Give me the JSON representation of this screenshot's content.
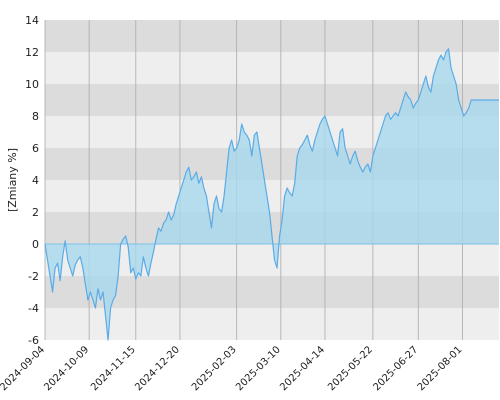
{
  "chart_data": {
    "type": "area",
    "title": "",
    "xlabel": "",
    "ylabel": "[Zmiany %]",
    "ylim": [
      -6,
      14
    ],
    "yticks": [
      -6,
      -4,
      -2,
      0,
      2,
      4,
      6,
      8,
      10,
      12,
      14
    ],
    "xlim": [
      "2024-09-04",
      "2025-08-30"
    ],
    "xticks": [
      "2024-09-04",
      "2024-10-09",
      "2024-11-15",
      "2024-12-20",
      "2025-02-03",
      "2025-03-10",
      "2025-04-14",
      "2025-05-22",
      "2025-06-27",
      "2025-08-01"
    ],
    "grid": {
      "horizontal_bands": true,
      "vertical_lines": true
    },
    "legend": "none",
    "colors": {
      "line": "#5aabe6",
      "fill": "#a8d8ec",
      "band_dark": "#dcdcdc",
      "band_light": "#eeeeee",
      "gridline": "#aaaaaa",
      "zero_line": "#7fbfe8"
    },
    "series": [
      {
        "x": [
          "2024-09-04",
          "2024-09-06",
          "2024-09-08",
          "2024-09-10",
          "2024-09-12",
          "2024-09-14",
          "2024-09-16",
          "2024-09-18",
          "2024-09-20",
          "2024-09-22",
          "2024-09-24",
          "2024-09-26",
          "2024-09-28",
          "2024-09-30",
          "2024-10-02",
          "2024-10-04",
          "2024-10-06",
          "2024-10-08",
          "2024-10-10",
          "2024-10-12",
          "2024-10-14",
          "2024-10-16",
          "2024-10-18",
          "2024-10-20",
          "2024-10-22",
          "2024-10-24",
          "2024-10-26",
          "2024-10-28",
          "2024-10-30",
          "2024-11-01",
          "2024-11-03",
          "2024-11-05",
          "2024-11-07",
          "2024-11-09",
          "2024-11-11",
          "2024-11-13",
          "2024-11-15",
          "2024-11-17",
          "2024-11-19",
          "2024-11-21",
          "2024-11-23",
          "2024-11-25",
          "2024-11-27",
          "2024-11-29",
          "2024-12-01",
          "2024-12-03",
          "2024-12-05",
          "2024-12-07",
          "2024-12-09",
          "2024-12-11",
          "2024-12-13",
          "2024-12-15",
          "2024-12-17",
          "2024-12-19",
          "2024-12-21",
          "2024-12-23",
          "2024-12-25",
          "2024-12-27",
          "2024-12-29",
          "2024-12-31",
          "2025-01-02",
          "2025-01-04",
          "2025-01-06",
          "2025-01-08",
          "2025-01-10",
          "2025-01-12",
          "2025-01-14",
          "2025-01-16",
          "2025-01-18",
          "2025-01-20",
          "2025-01-22",
          "2025-01-24",
          "2025-01-26",
          "2025-01-28",
          "2025-01-30",
          "2025-02-01",
          "2025-02-03",
          "2025-02-05",
          "2025-02-07",
          "2025-02-09",
          "2025-02-11",
          "2025-02-13",
          "2025-02-15",
          "2025-02-17",
          "2025-02-19",
          "2025-02-21",
          "2025-02-23",
          "2025-02-25",
          "2025-02-27",
          "2025-03-01",
          "2025-03-03",
          "2025-03-05",
          "2025-03-07",
          "2025-03-09",
          "2025-03-11",
          "2025-03-13",
          "2025-03-15",
          "2025-03-17",
          "2025-03-19",
          "2025-03-21",
          "2025-03-23",
          "2025-03-25",
          "2025-03-27",
          "2025-03-29",
          "2025-03-31",
          "2025-04-02",
          "2025-04-04",
          "2025-04-06",
          "2025-04-08",
          "2025-04-10",
          "2025-04-12",
          "2025-04-14",
          "2025-04-16",
          "2025-04-18",
          "2025-04-20",
          "2025-04-22",
          "2025-04-24",
          "2025-04-26",
          "2025-04-28",
          "2025-04-30",
          "2025-05-02",
          "2025-05-04",
          "2025-05-06",
          "2025-05-08",
          "2025-05-10",
          "2025-05-12",
          "2025-05-14",
          "2025-05-16",
          "2025-05-18",
          "2025-05-20",
          "2025-05-22",
          "2025-05-24",
          "2025-05-26",
          "2025-05-28",
          "2025-05-30",
          "2025-06-01",
          "2025-06-03",
          "2025-06-05",
          "2025-06-07",
          "2025-06-09",
          "2025-06-11",
          "2025-06-13",
          "2025-06-15",
          "2025-06-17",
          "2025-06-19",
          "2025-06-21",
          "2025-06-23",
          "2025-06-25",
          "2025-06-27",
          "2025-06-29",
          "2025-07-01",
          "2025-07-03",
          "2025-07-05",
          "2025-07-07",
          "2025-07-09",
          "2025-07-11",
          "2025-07-13",
          "2025-07-15",
          "2025-07-17",
          "2025-07-19",
          "2025-07-21",
          "2025-07-23",
          "2025-07-25",
          "2025-07-27",
          "2025-07-29",
          "2025-07-31",
          "2025-08-02",
          "2025-08-04",
          "2025-08-06",
          "2025-08-08",
          "2025-08-10",
          "2025-08-12",
          "2025-08-14",
          "2025-08-16",
          "2025-08-18",
          "2025-08-20",
          "2025-08-22",
          "2025-08-24",
          "2025-08-26",
          "2025-08-28",
          "2025-08-30"
        ],
        "values": [
          0.0,
          -1.0,
          -2.0,
          -3.0,
          -1.5,
          -1.2,
          -2.3,
          -0.8,
          0.2,
          -1.0,
          -1.5,
          -2.0,
          -1.3,
          -1.0,
          -0.8,
          -1.5,
          -2.5,
          -3.5,
          -3.0,
          -3.5,
          -4.0,
          -2.8,
          -3.5,
          -3.0,
          -4.5,
          -6.0,
          -4.0,
          -3.5,
          -3.2,
          -2.0,
          0.0,
          0.3,
          0.5,
          -0.2,
          -1.8,
          -1.5,
          -2.2,
          -1.8,
          -2.0,
          -0.8,
          -1.5,
          -2.0,
          -1.2,
          -0.5,
          0.3,
          1.0,
          0.8,
          1.3,
          1.5,
          2.0,
          1.5,
          1.8,
          2.5,
          3.0,
          3.5,
          4.0,
          4.5,
          4.8,
          4.0,
          4.2,
          4.5,
          3.8,
          4.2,
          3.5,
          3.0,
          2.0,
          1.0,
          2.5,
          3.0,
          2.2,
          2.0,
          3.0,
          4.5,
          6.0,
          6.5,
          5.8,
          6.0,
          6.5,
          7.5,
          7.0,
          6.8,
          6.5,
          5.5,
          6.8,
          7.0,
          6.0,
          5.0,
          4.0,
          3.0,
          2.0,
          0.5,
          -1.0,
          -1.5,
          0.5,
          1.5,
          3.0,
          3.5,
          3.2,
          3.0,
          3.8,
          5.5,
          6.0,
          6.2,
          6.5,
          6.8,
          6.2,
          5.8,
          6.5,
          7.0,
          7.5,
          7.8,
          8.0,
          7.5,
          7.0,
          6.5,
          6.0,
          5.5,
          7.0,
          7.2,
          6.0,
          5.5,
          5.0,
          5.5,
          5.8,
          5.2,
          4.8,
          4.5,
          4.8,
          5.0,
          4.5,
          5.5,
          6.0,
          6.5,
          7.0,
          7.5,
          8.0,
          8.2,
          7.8,
          8.0,
          8.2,
          8.0,
          8.5,
          9.0,
          9.5,
          9.2,
          9.0,
          8.5,
          8.8,
          9.0,
          9.5,
          10.0,
          10.5,
          9.8,
          9.5,
          10.5,
          11.0,
          11.5,
          11.8,
          11.5,
          12.0,
          12.2,
          11.0,
          10.5,
          10.0,
          9.0,
          8.5,
          8.0,
          8.2,
          8.5,
          9.0,
          9.0,
          9.0,
          9.0,
          9.0,
          9.0,
          9.0,
          9.0,
          9.0,
          9.0,
          9.0,
          9.0
        ]
      }
    ]
  }
}
